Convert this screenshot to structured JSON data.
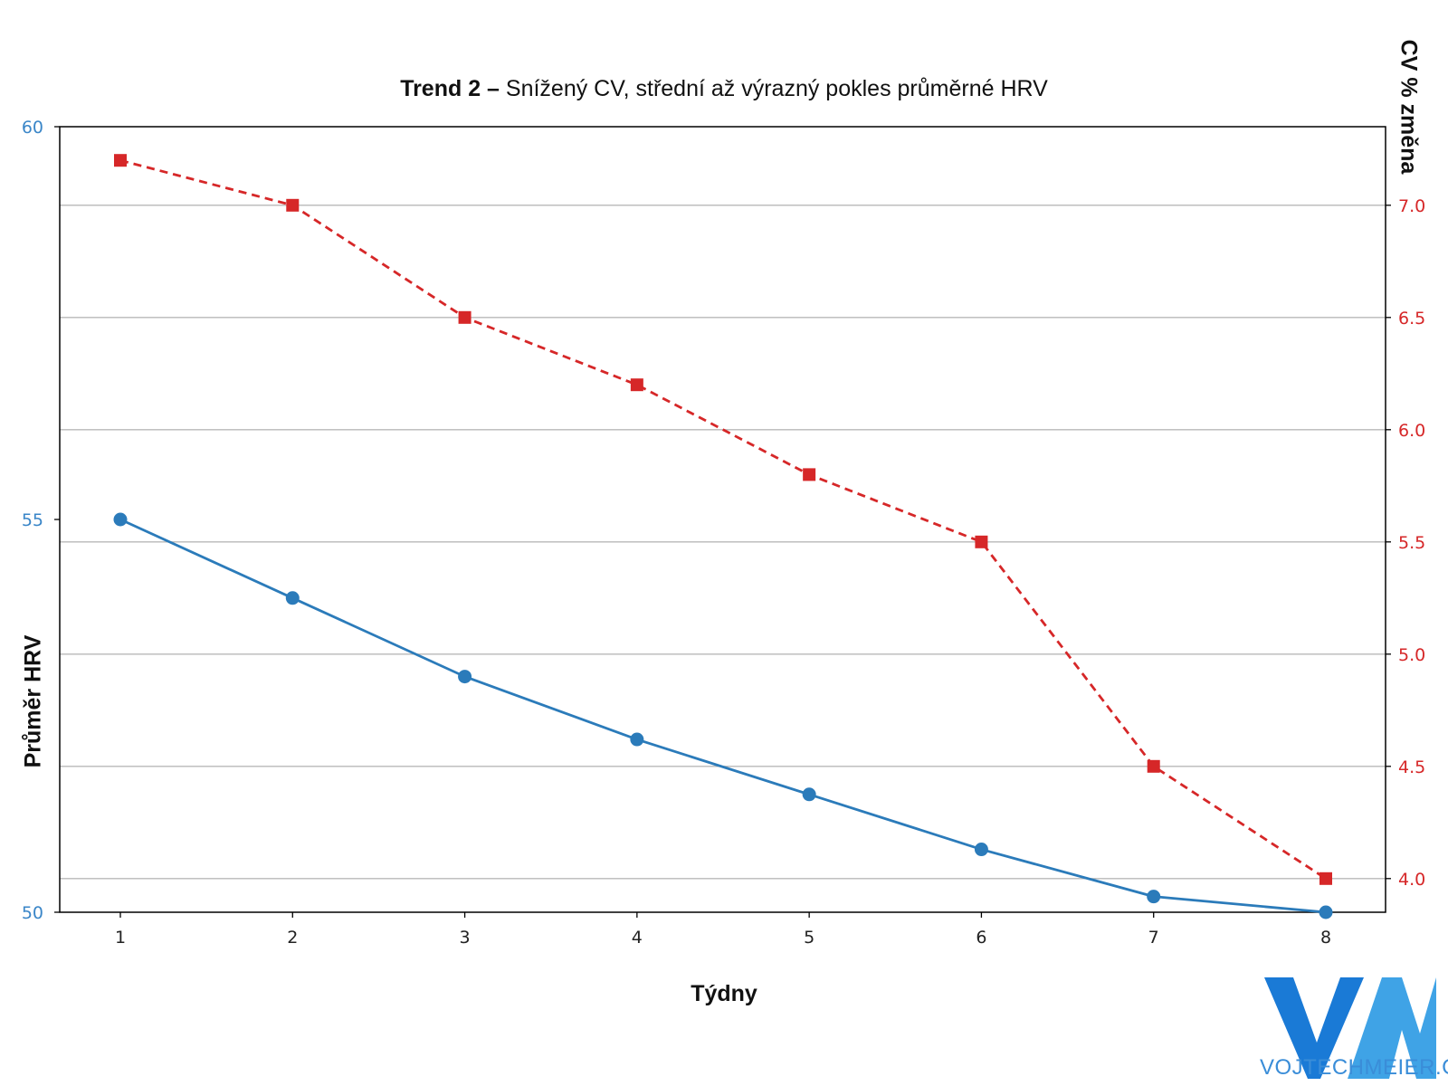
{
  "title": {
    "bold": "Trend 2 –",
    "rest": " Snížený CV, střední až výrazný pokles průměrné HRV"
  },
  "chart_data": {
    "type": "line",
    "title": "Trend 2 – Snížený CV, střední až výrazný pokles průměrné HRV",
    "xlabel": "Týdny",
    "ylabel_left": "Průměr HRV",
    "ylabel_right": "CV % změna",
    "x": [
      1,
      2,
      3,
      4,
      5,
      6,
      7,
      8
    ],
    "x_ticks": [
      "1",
      "2",
      "3",
      "4",
      "5",
      "6",
      "7",
      "8"
    ],
    "y_left_ticks": [
      "50",
      "55",
      "60"
    ],
    "y_right_ticks": [
      "4.0",
      "4.5",
      "5.0",
      "5.5",
      "6.0",
      "6.5",
      "7.0"
    ],
    "y_left_range": [
      50,
      60
    ],
    "y_right_range": [
      3.85,
      7.35
    ],
    "grid": "horizontal (right axis ticks)",
    "series": [
      {
        "axis": "left",
        "color": "#2b7bba",
        "marker": "circle",
        "line": "solid",
        "values": [
          55.0,
          54.0,
          53.0,
          52.2,
          51.5,
          50.8,
          50.2,
          50.0
        ]
      },
      {
        "axis": "right",
        "color": "#d62728",
        "marker": "square",
        "line": "dashed",
        "values": [
          7.2,
          7.0,
          6.5,
          6.2,
          5.8,
          5.5,
          4.5,
          4.0
        ]
      }
    ]
  },
  "watermark": {
    "text": "VOJTECHMEIER.CZ"
  },
  "colors": {
    "left_axis": "#3a86c8",
    "right_axis": "#d62728"
  }
}
